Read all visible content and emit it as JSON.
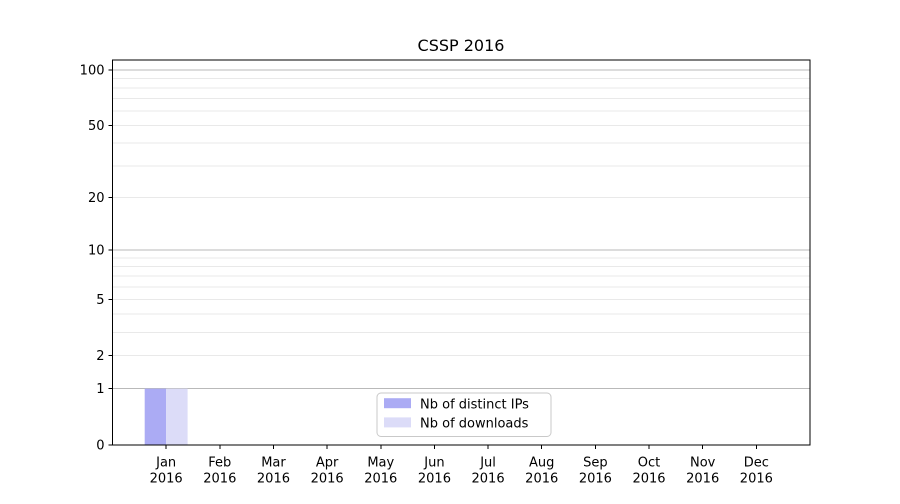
{
  "chart_data": {
    "type": "bar",
    "title": "CSSP 2016",
    "categories": [
      "Jan",
      "Feb",
      "Mar",
      "Apr",
      "May",
      "Jun",
      "Jul",
      "Aug",
      "Sep",
      "Oct",
      "Nov",
      "Dec"
    ],
    "year_label": "2016",
    "series": [
      {
        "name": "Nb of distinct IPs",
        "color": "#ababf4",
        "values": [
          1,
          0,
          0,
          0,
          0,
          0,
          0,
          0,
          0,
          0,
          0,
          0
        ]
      },
      {
        "name": "Nb of downloads",
        "color": "#dcdcf8",
        "values": [
          1,
          0,
          0,
          0,
          0,
          0,
          0,
          0,
          0,
          0,
          0,
          0
        ]
      }
    ],
    "yscale": "log1p",
    "ylim": [
      0,
      113
    ],
    "ytick_values": [
      0,
      1,
      2,
      5,
      10,
      20,
      50,
      100
    ],
    "ytick_labels": [
      "0",
      "1",
      "2",
      "5",
      "10",
      "20",
      "50",
      "100"
    ],
    "y_gridlines_major": [
      1,
      10,
      100
    ],
    "y_gridlines_minor": [
      2,
      3,
      4,
      5,
      6,
      7,
      8,
      9,
      20,
      30,
      40,
      50,
      60,
      70,
      80,
      90
    ],
    "grid": true,
    "legend": {
      "position": "lower center",
      "entries": [
        "Nb of distinct IPs",
        "Nb of downloads"
      ]
    },
    "colors": {
      "background": "#ffffff",
      "axis": "#000000",
      "text": "#000000",
      "grid_major": "#b9b9b9",
      "grid_minor": "#e9e9e9",
      "legend_border": "#c9c9c9",
      "legend_background": "#ffffff"
    }
  }
}
